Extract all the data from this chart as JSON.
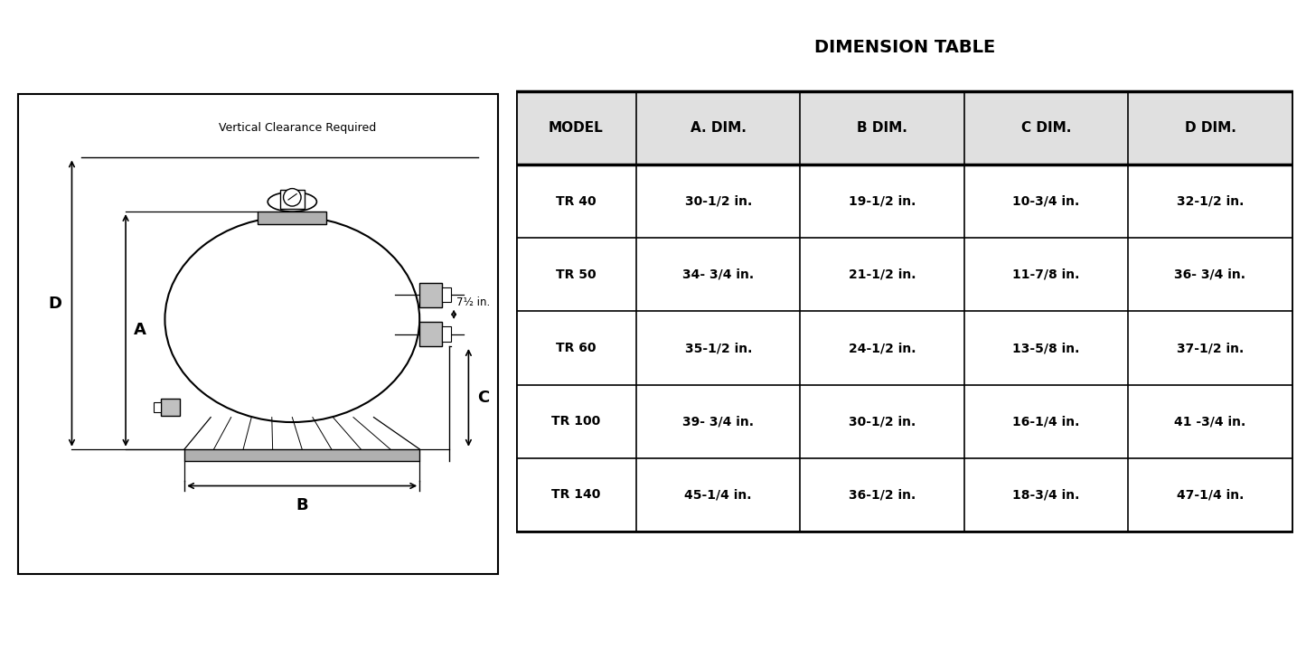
{
  "title": "DIMENSION TABLE",
  "table_headers": [
    "MODEL",
    "A. DIM.",
    "B DIM.",
    "C DIM.",
    "D DIM."
  ],
  "table_rows": [
    [
      "TR 40",
      "30-1/2 in.",
      "19-1/2 in.",
      "10-3/4 in.",
      "32-1/2 in."
    ],
    [
      "TR 50",
      "34- 3/4 in.",
      "21-1/2 in.",
      "11-7/8 in.",
      "36- 3/4 in."
    ],
    [
      "TR 60",
      "35-1/2 in.",
      "24-1/2 in.",
      "13-5/8 in.",
      "37-1/2 in."
    ],
    [
      "TR 100",
      "39- 3/4 in.",
      "30-1/2 in.",
      "16-1/4 in.",
      "41 -3/4 in."
    ],
    [
      "TR 140",
      "45-1/4 in.",
      "36-1/2 in.",
      "18-3/4 in.",
      "47-1/4 in."
    ]
  ],
  "vertical_clearance_text": "Vertical Clearance Required",
  "side_note": "7½ in.",
  "background_color": "#ffffff"
}
